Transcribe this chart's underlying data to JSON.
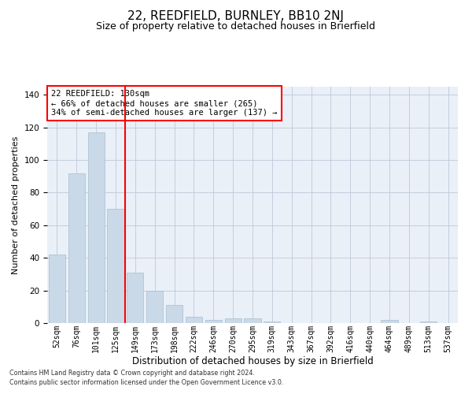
{
  "title": "22, REEDFIELD, BURNLEY, BB10 2NJ",
  "subtitle": "Size of property relative to detached houses in Brierfield",
  "xlabel": "Distribution of detached houses by size in Brierfield",
  "ylabel": "Number of detached properties",
  "bar_labels": [
    "52sqm",
    "76sqm",
    "101sqm",
    "125sqm",
    "149sqm",
    "173sqm",
    "198sqm",
    "222sqm",
    "246sqm",
    "270sqm",
    "295sqm",
    "319sqm",
    "343sqm",
    "367sqm",
    "392sqm",
    "416sqm",
    "440sqm",
    "464sqm",
    "489sqm",
    "513sqm",
    "537sqm"
  ],
  "bar_values": [
    42,
    92,
    117,
    70,
    31,
    20,
    11,
    4,
    2,
    3,
    3,
    1,
    0,
    0,
    0,
    0,
    0,
    2,
    0,
    1,
    0
  ],
  "bar_color": "#c9d9e8",
  "bar_edge_color": "#a8bece",
  "grid_color": "#c0c8d8",
  "background_color": "#eaf0f8",
  "red_line_x": 3.5,
  "ylim": [
    0,
    145
  ],
  "yticks": [
    0,
    20,
    40,
    60,
    80,
    100,
    120,
    140
  ],
  "annotation_text": "22 REEDFIELD: 130sqm\n← 66% of detached houses are smaller (265)\n34% of semi-detached houses are larger (137) →",
  "footnote1": "Contains HM Land Registry data © Crown copyright and database right 2024.",
  "footnote2": "Contains public sector information licensed under the Open Government Licence v3.0.",
  "title_fontsize": 11,
  "subtitle_fontsize": 9,
  "ylabel_fontsize": 8,
  "xlabel_fontsize": 8.5,
  "tick_fontsize": 7,
  "ann_fontsize": 7.5,
  "footnote_fontsize": 5.8
}
